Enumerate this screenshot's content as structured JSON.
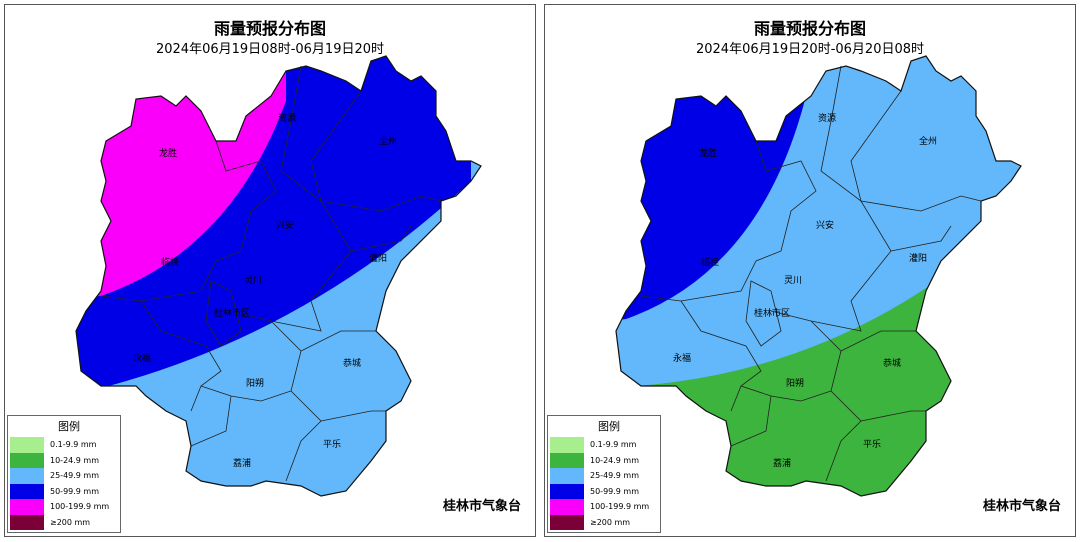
{
  "panels": [
    {
      "title": "雨量预报分布图",
      "subtitle": "2024年06月19日08时-06月19日20时",
      "footer": "桂林市气象台"
    },
    {
      "title": "雨量预报分布图",
      "subtitle": "2024年06月19日20时-06月20日08时",
      "footer": "桂林市气象台"
    }
  ],
  "places": {
    "longsheng": "龙胜",
    "ziyuan": "资源",
    "quanzhou": "全州",
    "xingan": "兴安",
    "lingui": "临桂",
    "lingchuan": "灵川",
    "guanyang": "灌阳",
    "city": "桂林市区",
    "yongfu": "永福",
    "gongcheng": "恭城",
    "yangshuo": "阳朔",
    "lipu": "荔浦",
    "pingle": "平乐"
  },
  "legend": {
    "title": "图例",
    "items": [
      {
        "label": "0.1-9.9 mm",
        "color": "#a6ee8e"
      },
      {
        "label": "10-24.9 mm",
        "color": "#3db43d"
      },
      {
        "label": "25-49.9 mm",
        "color": "#62b8fa"
      },
      {
        "label": "50-99.9 mm",
        "color": "#0000e6"
      },
      {
        "label": "100-199.9 mm",
        "color": "#fa00fa"
      },
      {
        "label": "≥200 mm",
        "color": "#7b0038"
      }
    ]
  }
}
